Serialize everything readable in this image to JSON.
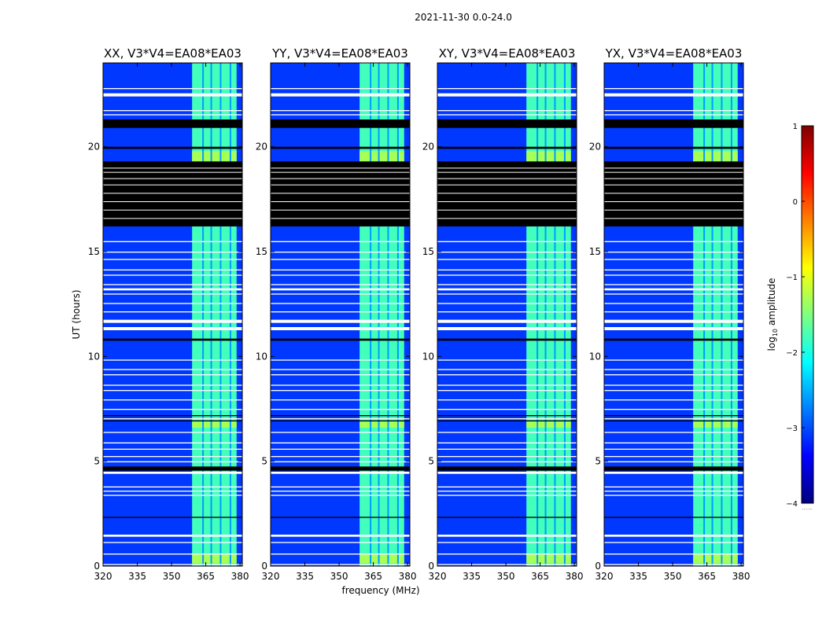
{
  "figure": {
    "suptitle": "2021-11-30 0.0-24.0",
    "ylabel": "UT (hours)",
    "xlabel": "frequency (MHz)",
    "colorbar_label_prefix": "log",
    "colorbar_label_sub": "10",
    "colorbar_label_suffix": " amplitude",
    "colorbar_bottom_label": "......"
  },
  "colors": {
    "background": "#00008f",
    "cmap": [
      "#00007f",
      "#0000ff",
      "#007fff",
      "#00ffff",
      "#7fff7f",
      "#ffff00",
      "#ff7f00",
      "#ff0000",
      "#7f0000"
    ],
    "flag_white": "#ffffff",
    "flag_black": "#000000"
  },
  "chart_data": {
    "type": "heatmap",
    "panels": [
      {
        "title": "XX, V3*V4=EA08*EA03",
        "ytick_labels": true
      },
      {
        "title": "YY, V3*V4=EA08*EA03",
        "ytick_labels": true
      },
      {
        "title": "XY, V3*V4=EA08*EA03",
        "ytick_labels": true
      },
      {
        "title": "YX, V3*V4=EA08*EA03",
        "ytick_labels": true
      }
    ],
    "xlim": [
      320,
      381
    ],
    "xticks": [
      {
        "value": 320,
        "label": "320"
      },
      {
        "value": 335,
        "label": "335"
      },
      {
        "value": 350,
        "label": "350"
      },
      {
        "value": 365,
        "label": "365"
      },
      {
        "value": 380,
        "label": "380"
      }
    ],
    "ylim": [
      0,
      24
    ],
    "yticks": [
      {
        "value": 0,
        "label": "0"
      },
      {
        "value": 5,
        "label": "5"
      },
      {
        "value": 10,
        "label": "10"
      },
      {
        "value": 15,
        "label": "15"
      },
      {
        "value": 20,
        "label": "20"
      }
    ],
    "colorbar": {
      "vmin": -4,
      "vmax": 1,
      "ticks": [
        {
          "value": 1,
          "label": "1"
        },
        {
          "value": 0,
          "label": "0"
        },
        {
          "value": -1,
          "label": "−1"
        },
        {
          "value": -2,
          "label": "−2"
        },
        {
          "value": -3,
          "label": "−3"
        },
        {
          "value": -4,
          "label": "−4"
        }
      ]
    },
    "signal_band_mhz": [
      359,
      378.5
    ],
    "signal_gaps_mhz": [
      363.8,
      367.4,
      371.5,
      375.8
    ],
    "background_log_amplitude": -3.1,
    "signal_log_amplitude": -1.8,
    "bright_hours": [
      [
        19.1,
        19.8
      ],
      [
        6.6,
        6.9
      ],
      [
        0.15,
        0.55
      ]
    ],
    "black_flag_hours": [
      [
        16.2,
        19.3
      ],
      [
        20.9,
        21.3
      ],
      [
        19.9,
        20.0
      ],
      [
        10.75,
        10.85
      ],
      [
        4.55,
        4.75
      ],
      [
        6.9,
        6.95
      ],
      [
        7.15,
        7.2
      ],
      [
        2.3,
        2.35
      ]
    ],
    "white_flag_hours": [
      [
        22.4,
        22.55
      ],
      [
        21.7,
        21.75
      ],
      [
        21.5,
        21.55
      ],
      [
        22.75,
        22.8
      ],
      [
        15.45,
        15.5
      ],
      [
        14.95,
        15.0
      ],
      [
        14.6,
        14.65
      ],
      [
        14.1,
        14.15
      ],
      [
        13.85,
        13.9
      ],
      [
        13.4,
        13.45
      ],
      [
        13.15,
        13.25
      ],
      [
        12.95,
        13.0
      ],
      [
        12.5,
        12.55
      ],
      [
        12.1,
        12.15
      ],
      [
        11.6,
        11.75
      ],
      [
        11.25,
        11.4
      ],
      [
        9.8,
        9.85
      ],
      [
        9.35,
        9.4
      ],
      [
        9.1,
        9.15
      ],
      [
        8.6,
        8.65
      ],
      [
        8.35,
        8.4
      ],
      [
        7.9,
        7.95
      ],
      [
        7.45,
        7.5
      ],
      [
        7.0,
        7.05
      ],
      [
        6.35,
        6.4
      ],
      [
        5.85,
        5.9
      ],
      [
        5.55,
        5.6
      ],
      [
        5.2,
        5.25
      ],
      [
        4.95,
        5.0
      ],
      [
        4.4,
        4.5
      ],
      [
        3.75,
        3.8
      ],
      [
        3.55,
        3.6
      ],
      [
        3.35,
        3.4
      ],
      [
        1.4,
        1.5
      ],
      [
        1.1,
        1.15
      ],
      [
        0.55,
        0.6
      ],
      [
        0.05,
        0.1
      ]
    ]
  }
}
